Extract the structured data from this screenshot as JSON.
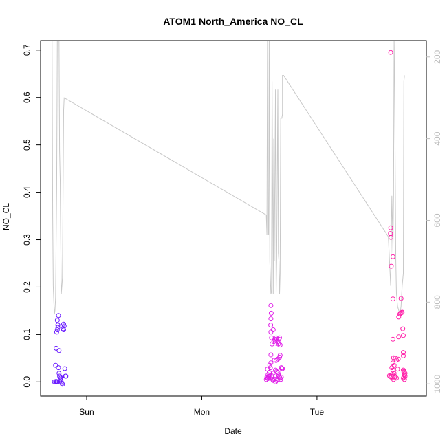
{
  "chart_data": {
    "type": "scatter",
    "title": "ATOM1 North_America NO_CL",
    "xlabel": "Date",
    "ylabel": "NO_CL",
    "x_ticks": [
      {
        "label": "Sun",
        "value": 1.0
      },
      {
        "label": "Mon",
        "value": 2.0
      },
      {
        "label": "Tue",
        "value": 3.0
      }
    ],
    "xlim": [
      0.6,
      3.95
    ],
    "ylim": [
      -0.03,
      0.72
    ],
    "y_ticks": [
      0.0,
      0.1,
      0.2,
      0.3,
      0.4,
      0.5,
      0.6,
      0.7
    ],
    "y2_ticks": [
      200,
      400,
      600,
      800,
      1000
    ],
    "y2lim": [
      160,
      1030
    ],
    "y2_reversed": true,
    "colors": {
      "line": "#c8c8c8",
      "axis": "#000000",
      "right_axis": "#bdbdbd",
      "group1": "#6a1bff",
      "group2": "#e020e8",
      "group3": "#ff1fa8"
    },
    "series": [
      {
        "color": "#6a1bff",
        "points": [
          [
            0.72,
            0.0
          ],
          [
            0.73,
            0.0
          ],
          [
            0.735,
            0.001
          ],
          [
            0.74,
            0.0
          ],
          [
            0.745,
            0.0
          ],
          [
            0.73,
            0.035
          ],
          [
            0.735,
            0.071
          ],
          [
            0.74,
            0.105
          ],
          [
            0.745,
            0.11
          ],
          [
            0.75,
            0.12
          ],
          [
            0.745,
            0.13
          ],
          [
            0.755,
            0.14
          ],
          [
            0.75,
            0.115
          ],
          [
            0.76,
            0.066
          ],
          [
            0.755,
            0.03
          ],
          [
            0.76,
            0.018
          ],
          [
            0.765,
            0.012
          ],
          [
            0.77,
            0.005
          ],
          [
            0.775,
            0.008
          ],
          [
            0.78,
            0.0
          ],
          [
            0.785,
            -0.003
          ],
          [
            0.79,
            -0.005
          ],
          [
            0.795,
            0.112
          ],
          [
            0.8,
            0.11
          ],
          [
            0.805,
            0.118
          ],
          [
            0.8,
            0.122
          ],
          [
            0.81,
            0.028
          ],
          [
            0.815,
            0.012
          ],
          [
            0.82,
            0.012
          ],
          [
            0.77,
            0.01
          ],
          [
            0.765,
            0.0
          ]
        ]
      },
      {
        "color": "#e020e8",
        "points": [
          [
            2.56,
            0.005
          ],
          [
            2.565,
            0.01
          ],
          [
            2.57,
            0.008
          ],
          [
            2.575,
            0.015
          ],
          [
            2.58,
            0.012
          ],
          [
            2.585,
            0.02
          ],
          [
            2.57,
            0.027
          ],
          [
            2.59,
            0.035
          ],
          [
            2.6,
            0.04
          ],
          [
            2.595,
            0.03
          ],
          [
            2.6,
            0.057
          ],
          [
            2.605,
            0.013
          ],
          [
            2.61,
            0.01
          ],
          [
            2.615,
            0.005
          ],
          [
            2.62,
            0.018
          ],
          [
            2.61,
            0.08
          ],
          [
            2.605,
            0.093
          ],
          [
            2.6,
            0.105
          ],
          [
            2.598,
            0.12
          ],
          [
            2.6,
            0.133
          ],
          [
            2.603,
            0.145
          ],
          [
            2.6,
            0.161
          ],
          [
            2.62,
            0.11
          ],
          [
            2.625,
            0.085
          ],
          [
            2.63,
            0.09
          ],
          [
            2.635,
            0.088
          ],
          [
            2.64,
            0.082
          ],
          [
            2.645,
            0.093
          ],
          [
            2.65,
            0.09
          ],
          [
            2.66,
            0.085
          ],
          [
            2.665,
            0.08
          ],
          [
            2.67,
            0.09
          ],
          [
            2.675,
            0.093
          ],
          [
            2.68,
            0.078
          ],
          [
            2.63,
            0.046
          ],
          [
            2.645,
            0.045
          ],
          [
            2.66,
            0.048
          ],
          [
            2.675,
            0.052
          ],
          [
            2.68,
            0.056
          ],
          [
            2.69,
            0.03
          ],
          [
            2.695,
            0.028
          ],
          [
            2.7,
            0.028
          ],
          [
            2.64,
            0.025
          ],
          [
            2.65,
            0.022
          ],
          [
            2.66,
            0.02
          ],
          [
            2.665,
            0.015
          ],
          [
            2.67,
            0.012
          ],
          [
            2.675,
            0.01
          ],
          [
            2.68,
            0.008
          ],
          [
            2.685,
            0.005
          ],
          [
            2.69,
            0.01
          ],
          [
            2.62,
            0.003
          ],
          [
            2.63,
            0.006
          ],
          [
            2.64,
            0.0
          ],
          [
            2.65,
            0.003
          ],
          [
            2.66,
            0.006
          ],
          [
            2.575,
            0.007
          ],
          [
            2.58,
            0.01
          ],
          [
            2.59,
            0.012
          ],
          [
            2.595,
            0.008
          ]
        ]
      },
      {
        "color": "#ff1fa8",
        "points": [
          [
            3.64,
            0.695
          ],
          [
            3.64,
            0.325
          ],
          [
            3.638,
            0.313
          ],
          [
            3.642,
            0.305
          ],
          [
            3.645,
            0.244
          ],
          [
            3.66,
            0.264
          ],
          [
            3.66,
            0.175
          ],
          [
            3.73,
            0.176
          ],
          [
            3.72,
            0.143
          ],
          [
            3.725,
            0.145
          ],
          [
            3.735,
            0.146
          ],
          [
            3.74,
            0.147
          ],
          [
            3.71,
            0.137
          ],
          [
            3.745,
            0.112
          ],
          [
            3.75,
            0.098
          ],
          [
            3.71,
            0.095
          ],
          [
            3.66,
            0.09
          ],
          [
            3.75,
            0.062
          ],
          [
            3.75,
            0.055
          ],
          [
            3.665,
            0.051
          ],
          [
            3.68,
            0.05
          ],
          [
            3.69,
            0.046
          ],
          [
            3.705,
            0.048
          ],
          [
            3.66,
            0.04
          ],
          [
            3.67,
            0.035
          ],
          [
            3.65,
            0.03
          ],
          [
            3.66,
            0.025
          ],
          [
            3.7,
            0.027
          ],
          [
            3.63,
            0.013
          ],
          [
            3.64,
            0.012
          ],
          [
            3.645,
            0.01
          ],
          [
            3.655,
            0.015
          ],
          [
            3.66,
            0.01
          ],
          [
            3.665,
            0.005
          ],
          [
            3.67,
            0.018
          ],
          [
            3.675,
            0.012
          ],
          [
            3.68,
            0.01
          ],
          [
            3.69,
            0.008
          ],
          [
            3.75,
            0.025
          ],
          [
            3.755,
            0.02
          ],
          [
            3.76,
            0.015
          ],
          [
            3.755,
            0.01
          ],
          [
            3.76,
            0.005
          ],
          [
            3.765,
            0.012
          ],
          [
            3.75,
            0.008
          ],
          [
            3.755,
            0.022
          ],
          [
            3.765,
            0.018
          ]
        ]
      }
    ],
    "line": [
      [
        0.7,
        160
      ],
      [
        0.705,
        590
      ],
      [
        0.71,
        760
      ],
      [
        0.715,
        800
      ],
      [
        0.72,
        830
      ],
      [
        0.725,
        820
      ],
      [
        0.73,
        790
      ],
      [
        0.74,
        520
      ],
      [
        0.745,
        160
      ],
      [
        0.76,
        160
      ],
      [
        0.765,
        430
      ],
      [
        0.77,
        500
      ],
      [
        0.775,
        650
      ],
      [
        0.78,
        780
      ],
      [
        0.785,
        760
      ],
      [
        0.79,
        740
      ],
      [
        0.8,
        330
      ],
      [
        0.805,
        300
      ],
      [
        2.56,
        587
      ],
      [
        2.565,
        635
      ],
      [
        2.57,
        160
      ],
      [
        2.575,
        600
      ],
      [
        2.58,
        635
      ],
      [
        2.585,
        160
      ],
      [
        2.59,
        700
      ],
      [
        2.6,
        780
      ],
      [
        2.605,
        775
      ],
      [
        2.61,
        260
      ],
      [
        2.62,
        780
      ],
      [
        2.625,
        400
      ],
      [
        2.63,
        700
      ],
      [
        2.64,
        280
      ],
      [
        2.645,
        780
      ],
      [
        2.65,
        700
      ],
      [
        2.66,
        280
      ],
      [
        2.665,
        680
      ],
      [
        2.67,
        700
      ],
      [
        2.675,
        780
      ],
      [
        2.68,
        730
      ],
      [
        2.685,
        350
      ],
      [
        2.695,
        350
      ],
      [
        2.7,
        340
      ],
      [
        2.7,
        245
      ],
      [
        2.71,
        245
      ],
      [
        3.62,
        640
      ],
      [
        3.63,
        700
      ],
      [
        3.64,
        760
      ],
      [
        3.645,
        660
      ],
      [
        3.65,
        540
      ],
      [
        3.655,
        600
      ],
      [
        3.66,
        680
      ],
      [
        3.665,
        540
      ],
      [
        3.67,
        160
      ],
      [
        3.675,
        260
      ],
      [
        3.68,
        500
      ],
      [
        3.685,
        700
      ],
      [
        3.69,
        780
      ],
      [
        3.7,
        810
      ],
      [
        3.71,
        820
      ],
      [
        3.72,
        830
      ],
      [
        3.73,
        810
      ],
      [
        3.74,
        760
      ],
      [
        3.75,
        730
      ],
      [
        3.755,
        260
      ],
      [
        3.76,
        245
      ]
    ]
  }
}
